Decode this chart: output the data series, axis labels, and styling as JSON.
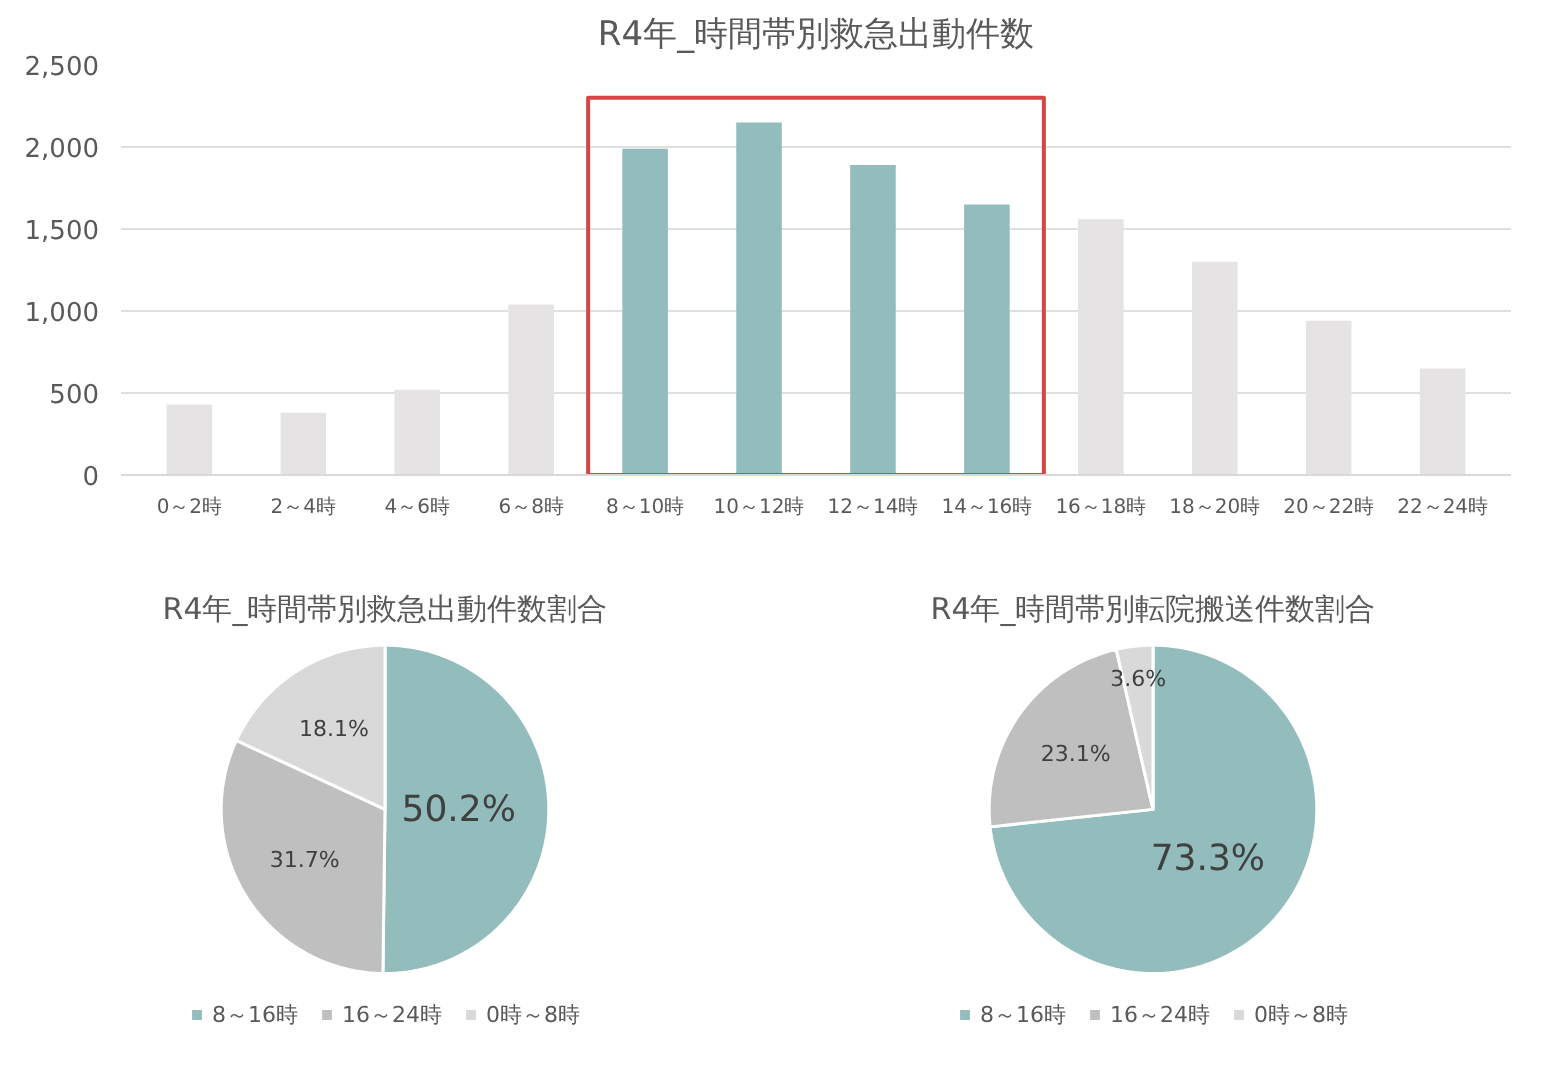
{
  "chart_data": [
    {
      "type": "bar",
      "title": "R4年_時間帯別救急出動件数",
      "categories": [
        "0～2時",
        "2～4時",
        "4～6時",
        "6～8時",
        "8～10時",
        "10～12時",
        "12～14時",
        "14～16時",
        "16～18時",
        "18～20時",
        "20～22時",
        "22～24時"
      ],
      "values": [
        430,
        380,
        520,
        1040,
        1990,
        2150,
        1890,
        1650,
        1560,
        1300,
        940,
        650
      ],
      "colors": [
        "#e6e3e4",
        "#e6e3e4",
        "#e6e3e4",
        "#e6e3e4",
        "#93bcbd",
        "#93bcbd",
        "#93bcbd",
        "#93bcbd",
        "#e6e3e4",
        "#e6e3e4",
        "#e6e3e4",
        "#e6e3e4"
      ],
      "ylim": [
        0,
        2500
      ],
      "yticks": [
        0,
        500,
        {
          "value": 1000,
          "label": "1,000"
        },
        {
          "value": 1500,
          "label": "1,500"
        },
        {
          "value": 2000,
          "label": "2,000"
        },
        {
          "value": 2500,
          "label": "2,500"
        }
      ],
      "grid": "y"
    },
    {
      "type": "pie",
      "title": "R4年_時間帯別救急出動件数割合",
      "categories": [
        "8～16時",
        "16～24時",
        "0時～8時"
      ],
      "values": [
        50.2,
        31.7,
        18.1
      ],
      "value_labels": [
        "50.2%",
        "31.7%",
        "18.1%"
      ],
      "colors": [
        "#93bcbd",
        "#bfbfbf",
        "#d9d9d9"
      ],
      "legend": "bottom"
    },
    {
      "type": "pie",
      "title": "R4年_時間帯別転院搬送件数割合",
      "categories": [
        "8～16時",
        "16～24時",
        "0時～8時"
      ],
      "values": [
        73.3,
        23.1,
        3.6
      ],
      "value_labels": [
        "73.3%",
        "23.1%",
        "3.6%"
      ],
      "colors": [
        "#93bcbd",
        "#bfbfbf",
        "#d9d9d9"
      ],
      "legend": "bottom"
    }
  ]
}
